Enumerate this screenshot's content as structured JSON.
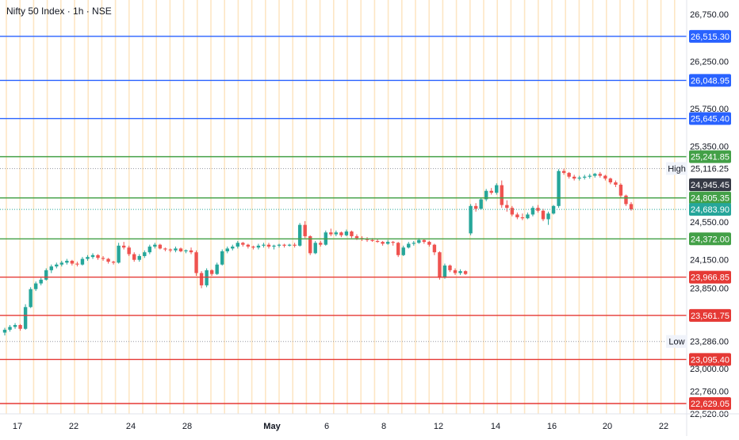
{
  "header": {
    "title": "Nifty 50 Index · 1h · NSE"
  },
  "chart_data": {
    "type": "candlestick",
    "ylim": [
      22520,
      26900
    ],
    "y_ticks": [
      {
        "value": 26750,
        "label": "26,750.00"
      },
      {
        "value": 26250,
        "label": "26,250.00"
      },
      {
        "value": 25750,
        "label": "25,750.00"
      },
      {
        "value": 25350,
        "label": "25,350.00"
      },
      {
        "value": 24550,
        "label": "24,550.00"
      },
      {
        "value": 24150,
        "label": "24,150.00"
      },
      {
        "value": 23850,
        "label": "23,850.00"
      },
      {
        "value": 23000,
        "label": "23,000.00"
      },
      {
        "value": 22760,
        "label": "22,760.00"
      },
      {
        "value": 22520,
        "label": "22,520.00"
      }
    ],
    "x_ticks": [
      "17",
      "22",
      "24",
      "28",
      "May",
      "6",
      "8",
      "12",
      "14",
      "16",
      "20",
      "22"
    ],
    "levels": [
      {
        "value": 26515.3,
        "label": "26,515.30",
        "kind": "resistance",
        "color": "#2962ff"
      },
      {
        "value": 26048.95,
        "label": "26,048.95",
        "kind": "resistance",
        "color": "#2962ff"
      },
      {
        "value": 25645.4,
        "label": "25,645.40",
        "kind": "resistance",
        "color": "#2962ff"
      },
      {
        "value": 25241.85,
        "label": "25,241.85",
        "kind": "support",
        "color": "#43a047"
      },
      {
        "value": 24805.35,
        "label": "24,805.35",
        "kind": "support",
        "color": "#43a047"
      },
      {
        "value": 24372.0,
        "label": "24,372.00",
        "kind": "support",
        "color": "#43a047"
      },
      {
        "value": 23966.85,
        "label": "23,966.85",
        "kind": "support",
        "color": "#e53935"
      },
      {
        "value": 23561.75,
        "label": "23,561.75",
        "kind": "support",
        "color": "#e53935"
      },
      {
        "value": 23095.4,
        "label": "23,095.40",
        "kind": "support",
        "color": "#e53935"
      },
      {
        "value": 22629.05,
        "label": "22,629.05",
        "kind": "support",
        "color": "#e53935"
      }
    ],
    "high": {
      "label": "High",
      "value": 25116.25,
      "text": "25,116.25"
    },
    "low": {
      "label": "Low",
      "value": 23286.0,
      "text": "23,286.00"
    },
    "current": {
      "value": 24945.45,
      "text": "24,945.45"
    },
    "last": {
      "value": 24683.9,
      "text": "24,683.90"
    },
    "candles": [
      [
        23380,
        23430,
        23350,
        23410
      ],
      [
        23410,
        23460,
        23390,
        23440
      ],
      [
        23440,
        23480,
        23420,
        23460
      ],
      [
        23460,
        23470,
        23400,
        23420
      ],
      [
        23420,
        23680,
        23410,
        23650
      ],
      [
        23650,
        23860,
        23640,
        23840
      ],
      [
        23840,
        23920,
        23820,
        23900
      ],
      [
        23900,
        23960,
        23880,
        23940
      ],
      [
        23940,
        24060,
        23930,
        24040
      ],
      [
        24040,
        24100,
        24010,
        24080
      ],
      [
        24080,
        24120,
        24060,
        24100
      ],
      [
        24100,
        24140,
        24080,
        24120
      ],
      [
        24120,
        24160,
        24100,
        24140
      ],
      [
        24140,
        24150,
        24090,
        24110
      ],
      [
        24110,
        24130,
        24080,
        24100
      ],
      [
        24100,
        24180,
        24090,
        24160
      ],
      [
        24160,
        24200,
        24140,
        24180
      ],
      [
        24180,
        24220,
        24160,
        24200
      ],
      [
        24200,
        24210,
        24150,
        24170
      ],
      [
        24170,
        24190,
        24140,
        24160
      ],
      [
        24160,
        24170,
        24110,
        24130
      ],
      [
        24130,
        24140,
        24100,
        24120
      ],
      [
        24120,
        24330,
        24110,
        24300
      ],
      [
        24300,
        24340,
        24260,
        24280
      ],
      [
        24280,
        24300,
        24190,
        24210
      ],
      [
        24210,
        24230,
        24130,
        24150
      ],
      [
        24150,
        24210,
        24130,
        24190
      ],
      [
        24190,
        24250,
        24170,
        24230
      ],
      [
        24230,
        24310,
        24210,
        24290
      ],
      [
        24290,
        24330,
        24270,
        24310
      ],
      [
        24310,
        24320,
        24260,
        24270
      ],
      [
        24270,
        24280,
        24240,
        24260
      ],
      [
        24260,
        24270,
        24230,
        24250
      ],
      [
        24250,
        24290,
        24230,
        24270
      ],
      [
        24270,
        24280,
        24230,
        24240
      ],
      [
        24240,
        24260,
        24220,
        24250
      ],
      [
        24250,
        24280,
        24210,
        24230
      ],
      [
        24230,
        24250,
        23980,
        24010
      ],
      [
        24010,
        24030,
        23850,
        23880
      ],
      [
        23880,
        24060,
        23860,
        24040
      ],
      [
        24040,
        24050,
        23980,
        24000
      ],
      [
        24000,
        24120,
        23990,
        24100
      ],
      [
        24100,
        24260,
        24090,
        24240
      ],
      [
        24240,
        24290,
        24220,
        24270
      ],
      [
        24270,
        24310,
        24250,
        24290
      ],
      [
        24290,
        24350,
        24270,
        24330
      ],
      [
        24330,
        24340,
        24290,
        24310
      ],
      [
        24310,
        24320,
        24270,
        24290
      ],
      [
        24290,
        24300,
        24260,
        24280
      ],
      [
        24280,
        24320,
        24260,
        24300
      ],
      [
        24300,
        24330,
        24280,
        24310
      ],
      [
        24310,
        24330,
        24270,
        24290
      ],
      [
        24290,
        24310,
        24260,
        24300
      ],
      [
        24300,
        24320,
        24280,
        24310
      ],
      [
        24310,
        24320,
        24280,
        24300
      ],
      [
        24300,
        24320,
        24290,
        24310
      ],
      [
        24310,
        24330,
        24280,
        24300
      ],
      [
        24300,
        24540,
        24290,
        24520
      ],
      [
        24520,
        24560,
        24380,
        24400
      ],
      [
        24400,
        24410,
        24200,
        24220
      ],
      [
        24220,
        24350,
        24210,
        24330
      ],
      [
        24330,
        24350,
        24290,
        24310
      ],
      [
        24310,
        24460,
        24300,
        24440
      ],
      [
        24440,
        24480,
        24400,
        24420
      ],
      [
        24420,
        24460,
        24400,
        24440
      ],
      [
        24440,
        24450,
        24390,
        24410
      ],
      [
        24410,
        24470,
        24400,
        24450
      ],
      [
        24450,
        24460,
        24380,
        24400
      ],
      [
        24400,
        24420,
        24360,
        24380
      ],
      [
        24380,
        24400,
        24350,
        24370
      ],
      [
        24370,
        24390,
        24340,
        24360
      ],
      [
        24360,
        24380,
        24340,
        24350
      ],
      [
        24350,
        24370,
        24330,
        24340
      ],
      [
        24340,
        24350,
        24300,
        24320
      ],
      [
        24320,
        24360,
        24310,
        24340
      ],
      [
        24340,
        24350,
        24300,
        24330
      ],
      [
        24330,
        24340,
        24180,
        24200
      ],
      [
        24200,
        24300,
        24190,
        24280
      ],
      [
        24280,
        24340,
        24270,
        24320
      ],
      [
        24320,
        24350,
        24300,
        24330
      ],
      [
        24330,
        24380,
        24320,
        24360
      ],
      [
        24360,
        24370,
        24320,
        24340
      ],
      [
        24340,
        24350,
        24290,
        24310
      ],
      [
        24310,
        24320,
        24200,
        24230
      ],
      [
        24230,
        24240,
        23940,
        23960
      ],
      [
        23960,
        24110,
        23950,
        24090
      ],
      [
        24090,
        24100,
        24020,
        24040
      ],
      [
        24040,
        24060,
        23990,
        24010
      ],
      [
        24010,
        24050,
        23990,
        24030
      ],
      [
        24030,
        24040,
        23990,
        24000
      ],
      [
        24430,
        24740,
        24410,
        24720
      ],
      [
        24720,
        24750,
        24660,
        24690
      ],
      [
        24690,
        24810,
        24680,
        24790
      ],
      [
        24790,
        24900,
        24770,
        24880
      ],
      [
        24880,
        24910,
        24840,
        24860
      ],
      [
        24860,
        24960,
        24840,
        24940
      ],
      [
        24940,
        24990,
        24700,
        24730
      ],
      [
        24730,
        24780,
        24660,
        24700
      ],
      [
        24700,
        24720,
        24610,
        24630
      ],
      [
        24630,
        24650,
        24580,
        24600
      ],
      [
        24600,
        24640,
        24570,
        24590
      ],
      [
        24590,
        24650,
        24580,
        24630
      ],
      [
        24630,
        24720,
        24610,
        24700
      ],
      [
        24700,
        24730,
        24650,
        24670
      ],
      [
        24670,
        24690,
        24560,
        24580
      ],
      [
        24580,
        24660,
        24520,
        24640
      ],
      [
        24640,
        24730,
        24630,
        24720
      ],
      [
        24720,
        25110,
        24700,
        25090
      ],
      [
        25090,
        25116,
        25050,
        25070
      ],
      [
        25070,
        25080,
        25010,
        25030
      ],
      [
        25030,
        25050,
        24990,
        25010
      ],
      [
        25010,
        25040,
        24990,
        25020
      ],
      [
        25020,
        25050,
        25000,
        25030
      ],
      [
        25030,
        25060,
        25010,
        25040
      ],
      [
        25040,
        25070,
        25020,
        25060
      ],
      [
        25060,
        25080,
        25020,
        25040
      ],
      [
        25040,
        25050,
        24990,
        25010
      ],
      [
        25010,
        25020,
        24950,
        24970
      ],
      [
        24970,
        24990,
        24920,
        24945
      ],
      [
        24945,
        24960,
        24810,
        24830
      ],
      [
        24830,
        24840,
        24720,
        24740
      ],
      [
        24740,
        24760,
        24670,
        24684
      ]
    ]
  }
}
